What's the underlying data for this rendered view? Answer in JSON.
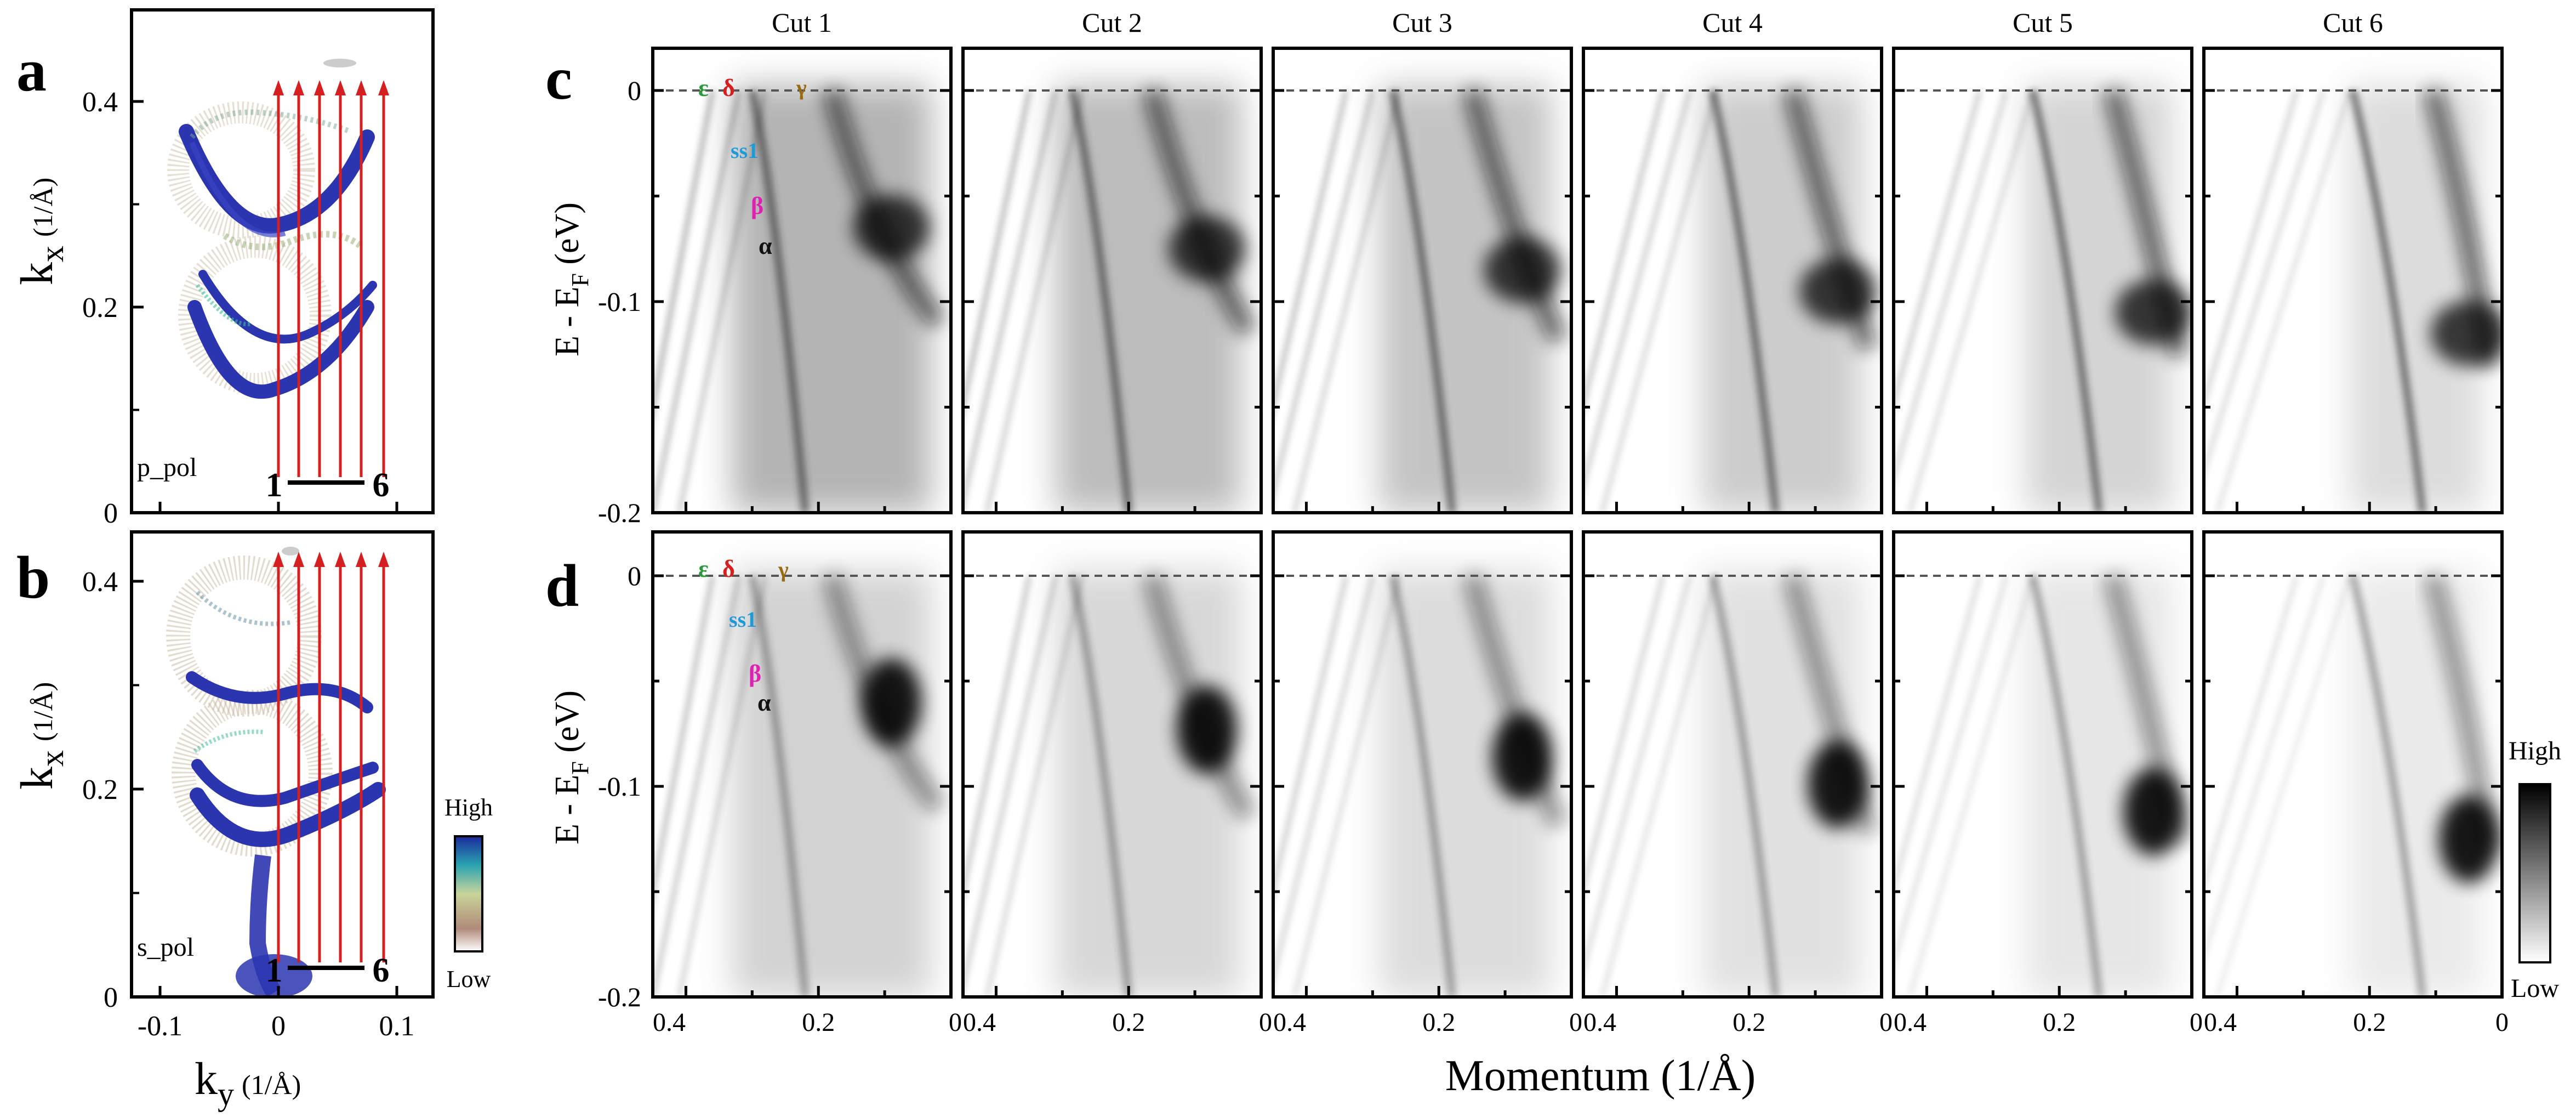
{
  "panels": {
    "a": {
      "letter": "a",
      "pol": "p_pol",
      "cut_range": {
        "start": "1",
        "end": "6"
      }
    },
    "b": {
      "letter": "b",
      "pol": "s_pol",
      "cut_range": {
        "start": "1",
        "end": "6"
      }
    },
    "c": {
      "letter": "c"
    },
    "d": {
      "letter": "d"
    }
  },
  "fermi_map": {
    "y_ticks": [
      "0",
      "0.2",
      "0.4"
    ],
    "x_ticks": [
      "-0.1",
      "0",
      "0.1"
    ],
    "ylabel_main": "k",
    "ylabel_sub": "x",
    "ylabel_unit": "(1/Å)",
    "xlabel_main": "k",
    "xlabel_sub": "y",
    "xlabel_unit": "(1/Å)",
    "colorbar": {
      "high": "High",
      "low": "Low"
    }
  },
  "cuts": {
    "titles": [
      "Cut 1",
      "Cut 2",
      "Cut 3",
      "Cut 4",
      "Cut 5",
      "Cut 6"
    ],
    "energy_ticks": [
      "0",
      "-0.1",
      "-0.2"
    ],
    "momentum_ticks": [
      "0.4",
      "0.2",
      "0"
    ],
    "momentum_last_tick": "0",
    "ylabel_main": "E - E",
    "ylabel_sub": "F",
    "ylabel_unit": " (eV)",
    "xlabel": "Momentum (1/Å)",
    "colorbar": {
      "high": "High",
      "low": "Low"
    }
  },
  "band_labels": {
    "epsilon": {
      "text": "ε",
      "color": "#2a9a3a"
    },
    "delta": {
      "text": "δ",
      "color": "#d62020"
    },
    "gamma": {
      "text": "γ",
      "color": "#9a6a10"
    },
    "ss1": {
      "text": "ss1",
      "color": "#1e9ad8"
    },
    "beta": {
      "text": "β",
      "color": "#e020b0"
    },
    "alpha": {
      "text": "α",
      "color": "#111111"
    }
  },
  "colors": {
    "cut_lines": "#d42020",
    "axes": "#000000",
    "fermi_level": "#555555"
  }
}
